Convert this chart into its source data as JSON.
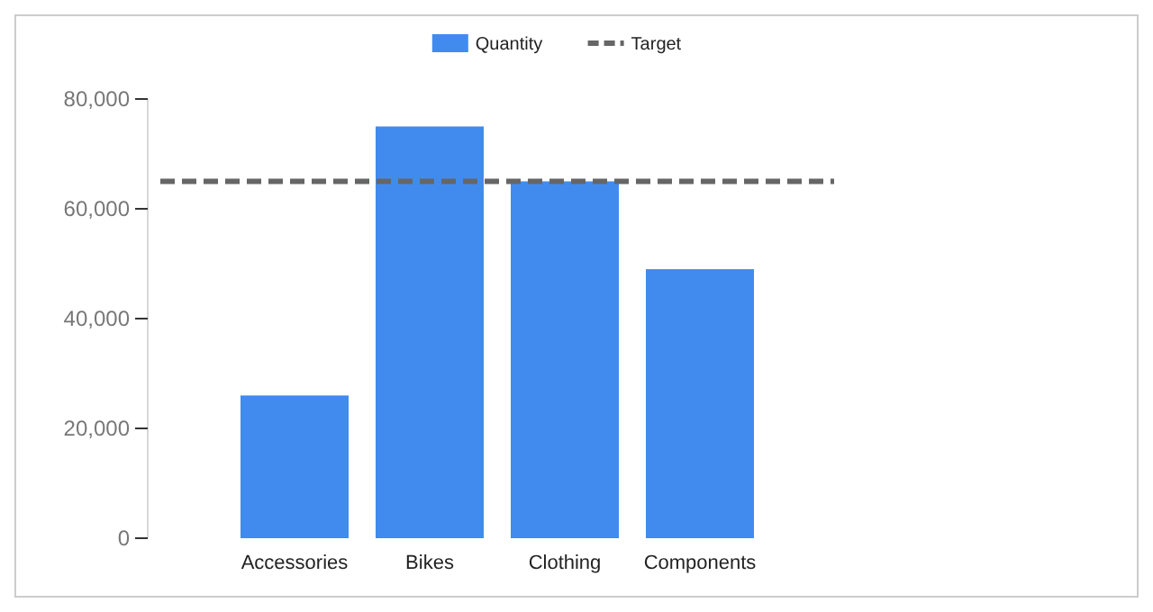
{
  "chart_data": {
    "type": "bar",
    "categories": [
      "Accessories",
      "Bikes",
      "Clothing",
      "Components"
    ],
    "series": [
      {
        "name": "Quantity",
        "color": "#418bef",
        "values": [
          26000,
          75000,
          65000,
          49000
        ]
      }
    ],
    "ylim": [
      0,
      80000
    ],
    "yticks": [
      {
        "value": 0,
        "label": "0"
      },
      {
        "value": 20000,
        "label": "20,000"
      },
      {
        "value": 40000,
        "label": "40,000"
      },
      {
        "value": 60000,
        "label": "60,000"
      },
      {
        "value": 80000,
        "label": "80,000"
      }
    ],
    "ref_lines": [
      {
        "axis": "y",
        "value": 65000,
        "label": "Target",
        "color": "#666666",
        "line_style": "dashed"
      }
    ],
    "grid": false,
    "legend": "top"
  }
}
